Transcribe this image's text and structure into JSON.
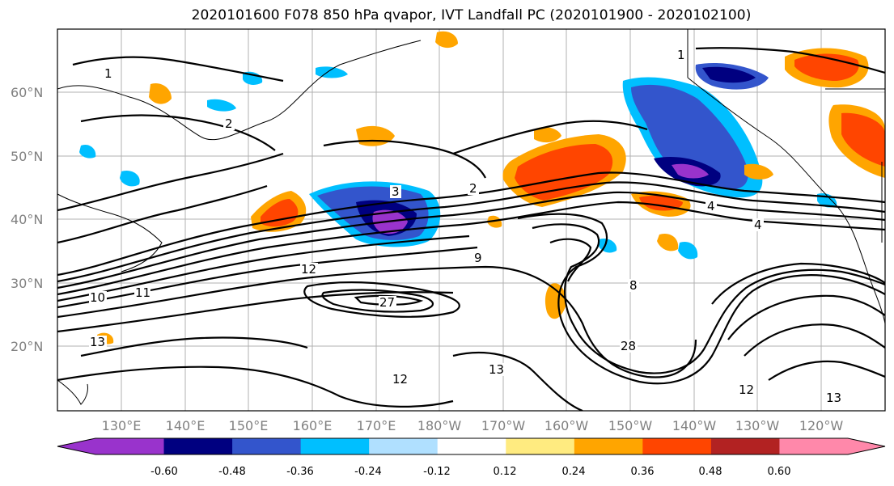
{
  "title": "2020101600 F078 850 hPa qvapor, IVT Landfall PC (2020101900 - 2020102100)",
  "lat_labels": [
    "60°N",
    "50°N",
    "40°N",
    "30°N",
    "20°N"
  ],
  "lon_labels": [
    "130°E",
    "140°E",
    "150°E",
    "160°E",
    "170°E",
    "180°W",
    "170°W",
    "160°W",
    "150°W",
    "140°W",
    "130°W",
    "120°W"
  ],
  "colorbar": {
    "colors": [
      "#9933cc",
      "#000080",
      "#3355cc",
      "#00bfff",
      "#b0e0ff",
      "#ffffff",
      "#ffeb80",
      "#ffa500",
      "#ff4500",
      "#b22222",
      "#ff88aa"
    ],
    "ticks": [
      "-0.60",
      "-0.48",
      "-0.36",
      "-0.24",
      "-0.12",
      "0.12",
      "0.24",
      "0.36",
      "0.48",
      "0.60"
    ]
  },
  "contour_labels": [
    "1",
    "1",
    "2",
    "2",
    "3",
    "4",
    "4",
    "8",
    "9",
    "10",
    "11",
    "12",
    "12",
    "12",
    "13",
    "13",
    "13",
    "27",
    "28"
  ]
}
